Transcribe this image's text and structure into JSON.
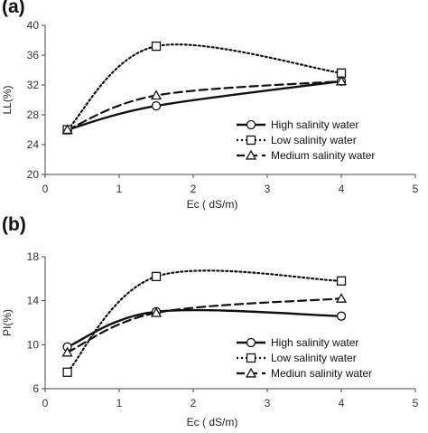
{
  "chart_data": [
    {
      "panel_label": "(a)",
      "type": "line",
      "xlabel": "Ec ( dS/m)",
      "ylabel": "LL(%)",
      "xlim": [
        0,
        5
      ],
      "ylim": [
        20,
        40
      ],
      "x_ticks": [
        0,
        1,
        2,
        3,
        4,
        5
      ],
      "y_ticks": [
        20,
        24,
        28,
        32,
        36,
        40
      ],
      "grid": false,
      "legend_position": "bottom-right",
      "x": [
        0.3,
        1.5,
        4
      ],
      "series": [
        {
          "name": "High salinity water",
          "style": "solid",
          "marker": "circle",
          "values": [
            26.0,
            29.2,
            32.5
          ]
        },
        {
          "name": "Low salinity water",
          "style": "dotted",
          "marker": "square",
          "values": [
            26.0,
            37.2,
            33.6
          ]
        },
        {
          "name": "Medium salinity water",
          "style": "dashed",
          "marker": "triangle",
          "values": [
            26.0,
            30.6,
            32.5
          ]
        }
      ]
    },
    {
      "panel_label": "(b)",
      "type": "line",
      "xlabel": "Ec ( dS/m)",
      "ylabel": "PI(%)",
      "xlim": [
        0,
        5
      ],
      "ylim": [
        6,
        18
      ],
      "x_ticks": [
        0,
        1,
        2,
        3,
        4,
        5
      ],
      "y_ticks": [
        6,
        10,
        14,
        18
      ],
      "grid": false,
      "legend_position": "bottom-right",
      "x": [
        0.3,
        1.5,
        4
      ],
      "series": [
        {
          "name": "High salinity water",
          "style": "solid",
          "marker": "circle",
          "values": [
            9.8,
            13.0,
            12.6
          ]
        },
        {
          "name": "Low salinity water",
          "style": "dotted",
          "marker": "square",
          "values": [
            7.5,
            16.2,
            15.8
          ]
        },
        {
          "name": "Mediun salinity water",
          "style": "dashed",
          "marker": "triangle",
          "values": [
            9.3,
            12.9,
            14.2
          ]
        }
      ]
    }
  ]
}
